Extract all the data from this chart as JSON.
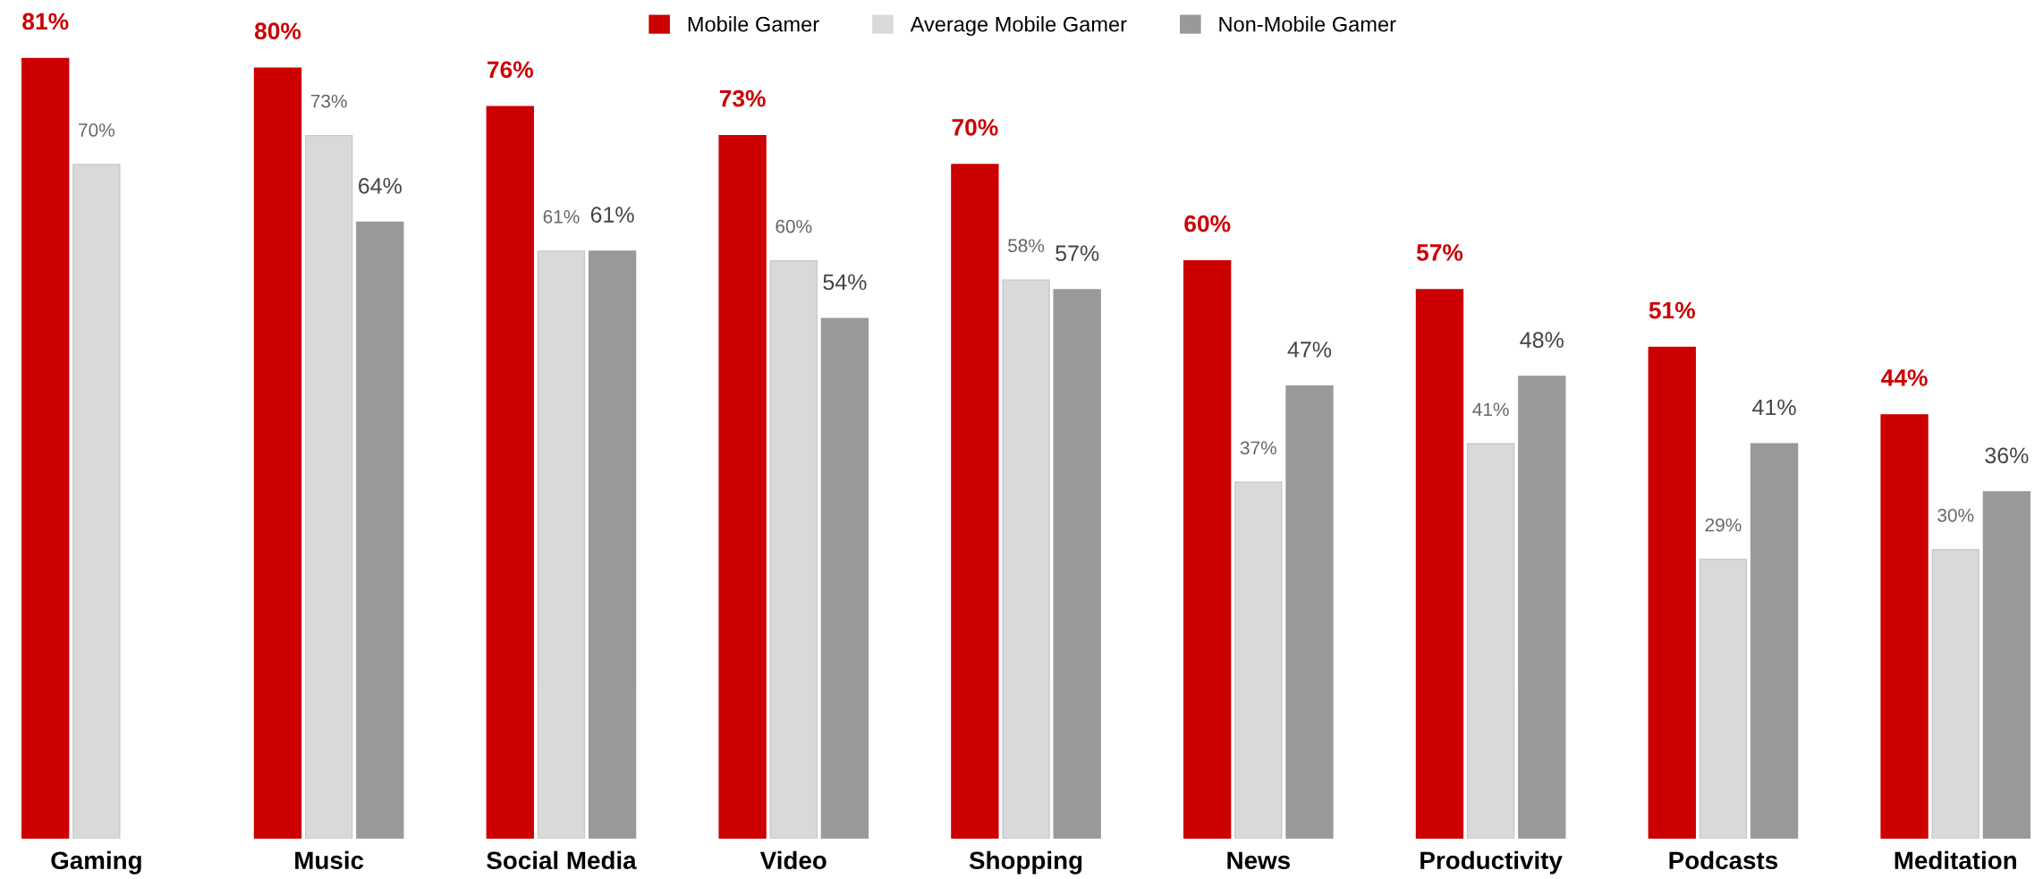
{
  "chart_data": {
    "type": "bar",
    "categories": [
      "Gaming",
      "Music",
      "Social Media",
      "Video",
      "Shopping",
      "News",
      "Productivity",
      "Podcasts",
      "Meditation"
    ],
    "legend": "top",
    "grid": false,
    "tick_labels": "x",
    "series": [
      {
        "name": "Mobile Gamer",
        "color": "#cc0000",
        "values": [
          81,
          80,
          76,
          73,
          70,
          60,
          57,
          51,
          44
        ],
        "value_labels": [
          "81%",
          "80%",
          "76%",
          "73%",
          "70%",
          "60%",
          "57%",
          "51%",
          "44%"
        ]
      },
      {
        "name": "Average Mobile Gamer",
        "color": "#d9d9d9",
        "values": [
          70,
          73,
          61,
          60,
          58,
          37,
          41,
          29,
          30
        ],
        "value_labels": [
          "70%",
          "73%",
          "61%",
          "60%",
          "58%",
          "37%",
          "41%",
          "29%",
          "30%"
        ]
      },
      {
        "name": "Non-Mobile Gamer",
        "color": "#999999",
        "values": [
          null,
          64,
          61,
          54,
          57,
          47,
          48,
          41,
          36
        ],
        "value_labels": [
          null,
          "64%",
          "61%",
          "54%",
          "57%",
          "47%",
          "48%",
          "41%",
          "36%"
        ]
      }
    ]
  }
}
